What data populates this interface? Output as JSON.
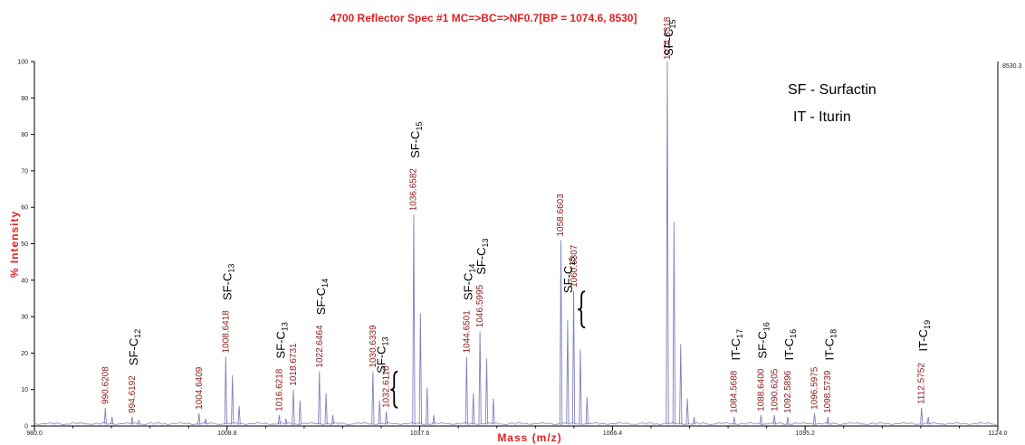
{
  "chart_data": {
    "type": "line",
    "title": "4700 Reflector Spec #1 MC=>BC=>NF0.7[BP = 1074.6, 8530]",
    "xlabel": "Mass (m/z)",
    "ylabel": "% Intensity",
    "xlim": [
      980.0,
      1124.0
    ],
    "ylim": [
      0,
      100
    ],
    "x_ticks": [
      "980.0",
      "1008.8",
      "1037.6",
      "1066.4",
      "1095.2",
      "1124.0"
    ],
    "y_ticks": [
      "0",
      "10",
      "20",
      "30",
      "40",
      "50",
      "60",
      "70",
      "80",
      "90",
      "100"
    ],
    "max_intensity_label": "8530.3",
    "grid": false,
    "legend": [
      "SF - Surfactin",
      "IT - Iturin"
    ],
    "peaks": [
      {
        "x": 990.6,
        "y": 5
      },
      {
        "x": 991.6,
        "y": 2.5
      },
      {
        "x": 994.6,
        "y": 2.5
      },
      {
        "x": 995.6,
        "y": 1.5
      },
      {
        "x": 1004.6,
        "y": 3.5
      },
      {
        "x": 1005.6,
        "y": 2
      },
      {
        "x": 1008.6,
        "y": 19
      },
      {
        "x": 1009.6,
        "y": 14
      },
      {
        "x": 1010.6,
        "y": 5.5
      },
      {
        "x": 1016.6,
        "y": 3
      },
      {
        "x": 1017.6,
        "y": 2
      },
      {
        "x": 1018.7,
        "y": 10
      },
      {
        "x": 1019.7,
        "y": 7
      },
      {
        "x": 1022.6,
        "y": 15
      },
      {
        "x": 1023.6,
        "y": 9
      },
      {
        "x": 1024.6,
        "y": 3
      },
      {
        "x": 1030.6,
        "y": 15
      },
      {
        "x": 1031.6,
        "y": 7
      },
      {
        "x": 1032.6,
        "y": 4
      },
      {
        "x": 1036.7,
        "y": 58
      },
      {
        "x": 1037.7,
        "y": 31
      },
      {
        "x": 1038.7,
        "y": 10.5
      },
      {
        "x": 1039.7,
        "y": 3
      },
      {
        "x": 1044.6,
        "y": 19
      },
      {
        "x": 1045.6,
        "y": 9
      },
      {
        "x": 1046.6,
        "y": 26
      },
      {
        "x": 1047.6,
        "y": 18.5
      },
      {
        "x": 1048.6,
        "y": 7.5
      },
      {
        "x": 1058.7,
        "y": 51
      },
      {
        "x": 1059.7,
        "y": 29
      },
      {
        "x": 1060.6,
        "y": 37
      },
      {
        "x": 1061.6,
        "y": 21
      },
      {
        "x": 1062.6,
        "y": 8
      },
      {
        "x": 1074.6,
        "y": 100
      },
      {
        "x": 1075.6,
        "y": 56
      },
      {
        "x": 1076.6,
        "y": 22.5
      },
      {
        "x": 1077.6,
        "y": 7.5
      },
      {
        "x": 1078.6,
        "y": 2.5
      },
      {
        "x": 1084.6,
        "y": 2.5
      },
      {
        "x": 1088.6,
        "y": 3
      },
      {
        "x": 1090.6,
        "y": 3
      },
      {
        "x": 1092.6,
        "y": 2.5
      },
      {
        "x": 1096.6,
        "y": 3.5
      },
      {
        "x": 1098.6,
        "y": 2.5
      },
      {
        "x": 1112.6,
        "y": 5
      },
      {
        "x": 1113.6,
        "y": 2.5
      }
    ],
    "peak_labels": [
      {
        "x": 990.6208,
        "label": "990.6208"
      },
      {
        "x": 994.6192,
        "label": "994.6192"
      },
      {
        "x": 1004.6409,
        "label": "1004.6409"
      },
      {
        "x": 1008.6418,
        "label": "1008.6418"
      },
      {
        "x": 1016.6218,
        "label": "1016.6218"
      },
      {
        "x": 1018.6731,
        "label": "1018.6731"
      },
      {
        "x": 1022.6464,
        "label": "1022.6464"
      },
      {
        "x": 1030.6339,
        "label": "1030.6339"
      },
      {
        "x": 1032.611,
        "label": "1032.6110"
      },
      {
        "x": 1036.6582,
        "label": "1036.6582"
      },
      {
        "x": 1044.6501,
        "label": "1044.6501"
      },
      {
        "x": 1046.5995,
        "label": "1046.5995"
      },
      {
        "x": 1058.6603,
        "label": "1058.6603"
      },
      {
        "x": 1060.6307,
        "label": "1060.6307"
      },
      {
        "x": 1074.6318,
        "label": "1074.6318"
      },
      {
        "x": 1084.5688,
        "label": "1084.5688"
      },
      {
        "x": 1088.64,
        "label": "1088.6400"
      },
      {
        "x": 1090.6205,
        "label": "1090.6205"
      },
      {
        "x": 1092.5896,
        "label": "1092.5896"
      },
      {
        "x": 1096.5975,
        "label": "1096.5975"
      },
      {
        "x": 1098.5739,
        "label": "1098.5739"
      },
      {
        "x": 1112.5752,
        "label": "1112.5752"
      }
    ],
    "annotations": [
      {
        "x": 994.6,
        "base": "SF-C",
        "sub": "12",
        "brace": false
      },
      {
        "x": 1008.6,
        "base": "SF-C",
        "sub": "13",
        "brace": false
      },
      {
        "x": 1016.6,
        "base": "SF-C",
        "sub": "13",
        "brace": false
      },
      {
        "x": 1022.6,
        "base": "SF-C",
        "sub": "14",
        "brace": false
      },
      {
        "x": 1031.6,
        "base": "SF-C",
        "sub": "13",
        "brace": true
      },
      {
        "x": 1036.7,
        "base": "SF-C",
        "sub": "15",
        "brace": false
      },
      {
        "x": 1044.6,
        "base": "SF-C",
        "sub": "14",
        "brace": false
      },
      {
        "x": 1046.6,
        "base": "SF-C",
        "sub": "13",
        "brace": false
      },
      {
        "x": 1059.6,
        "base": "SF-C",
        "sub": "15",
        "brace": true
      },
      {
        "x": 1074.6,
        "base": "SF-C",
        "sub": "15",
        "brace": false
      },
      {
        "x": 1084.6,
        "base": "IT-C",
        "sub": "17",
        "brace": false
      },
      {
        "x": 1088.6,
        "base": "SF-C",
        "sub": "16",
        "brace": false
      },
      {
        "x": 1092.6,
        "base": "IT-C",
        "sub": "16",
        "brace": false
      },
      {
        "x": 1098.6,
        "base": "IT-C",
        "sub": "18",
        "brace": false
      },
      {
        "x": 1112.6,
        "base": "IT-C",
        "sub": "19",
        "brace": false
      }
    ]
  },
  "colors": {
    "spectrum": "#8080c0",
    "title": "#e02020",
    "peak_label": "#8b1a1a"
  }
}
